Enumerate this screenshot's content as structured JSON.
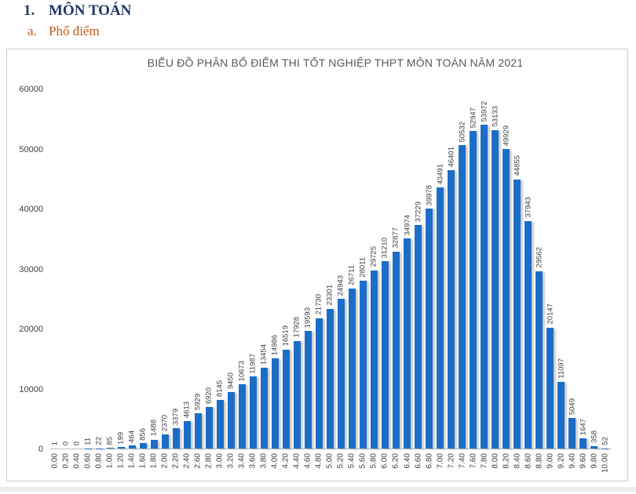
{
  "page": {
    "section_number": "1.",
    "section_title": "MÔN TOÁN",
    "subsection_letter": "a.",
    "subsection_title": "Phổ điểm"
  },
  "chart_data": {
    "type": "bar",
    "title": "BIỂU ĐỒ PHÂN BỐ ĐIỂM THI TỐT NGHIỆP THPT MÔN TOÁN NĂM 2021",
    "xlabel": "",
    "ylabel": "",
    "grid": false,
    "legend": false,
    "data_labels": true,
    "ylim": [
      0,
      60000
    ],
    "yticks": [
      0,
      10000,
      20000,
      30000,
      40000,
      50000,
      60000
    ],
    "categories": [
      "0.00",
      "0.20",
      "0.40",
      "0.60",
      "0.80",
      "1.00",
      "1.20",
      "1.40",
      "1.60",
      "1.80",
      "2.00",
      "2.20",
      "2.40",
      "2.60",
      "2.80",
      "3.00",
      "3.20",
      "3.40",
      "3.60",
      "3.80",
      "4.00",
      "4.20",
      "4.40",
      "4.60",
      "4.80",
      "5.00",
      "5.20",
      "5.40",
      "5.60",
      "5.80",
      "6.00",
      "6.20",
      "6.40",
      "6.60",
      "6.80",
      "7.00",
      "7.20",
      "7.40",
      "7.60",
      "7.80",
      "8.00",
      "8.20",
      "8.40",
      "8.60",
      "8.80",
      "9.00",
      "9.20",
      "9.40",
      "9.60",
      "9.80",
      "10.00"
    ],
    "values": [
      1,
      0,
      0,
      11,
      22,
      85,
      199,
      464,
      856,
      1488,
      2370,
      3379,
      4613,
      5929,
      6920,
      8145,
      9450,
      10673,
      11987,
      13454,
      14986,
      16519,
      17928,
      19593,
      21730,
      23301,
      24943,
      26711,
      28011,
      29725,
      31210,
      32877,
      34974,
      37229,
      39978,
      43491,
      46401,
      50532,
      52947,
      53972,
      53133,
      49929,
      44855,
      37943,
      29562,
      20147,
      11097,
      5049,
      1647,
      358,
      52
    ],
    "bar_color": "#1B6EC8"
  },
  "colors": {
    "heading": "#1F3864",
    "subheading": "#C05A17",
    "title_text": "#595959",
    "axis_text": "#404040",
    "axis_line": "#BFBFBF",
    "chart_border": "#CBCBCB"
  }
}
